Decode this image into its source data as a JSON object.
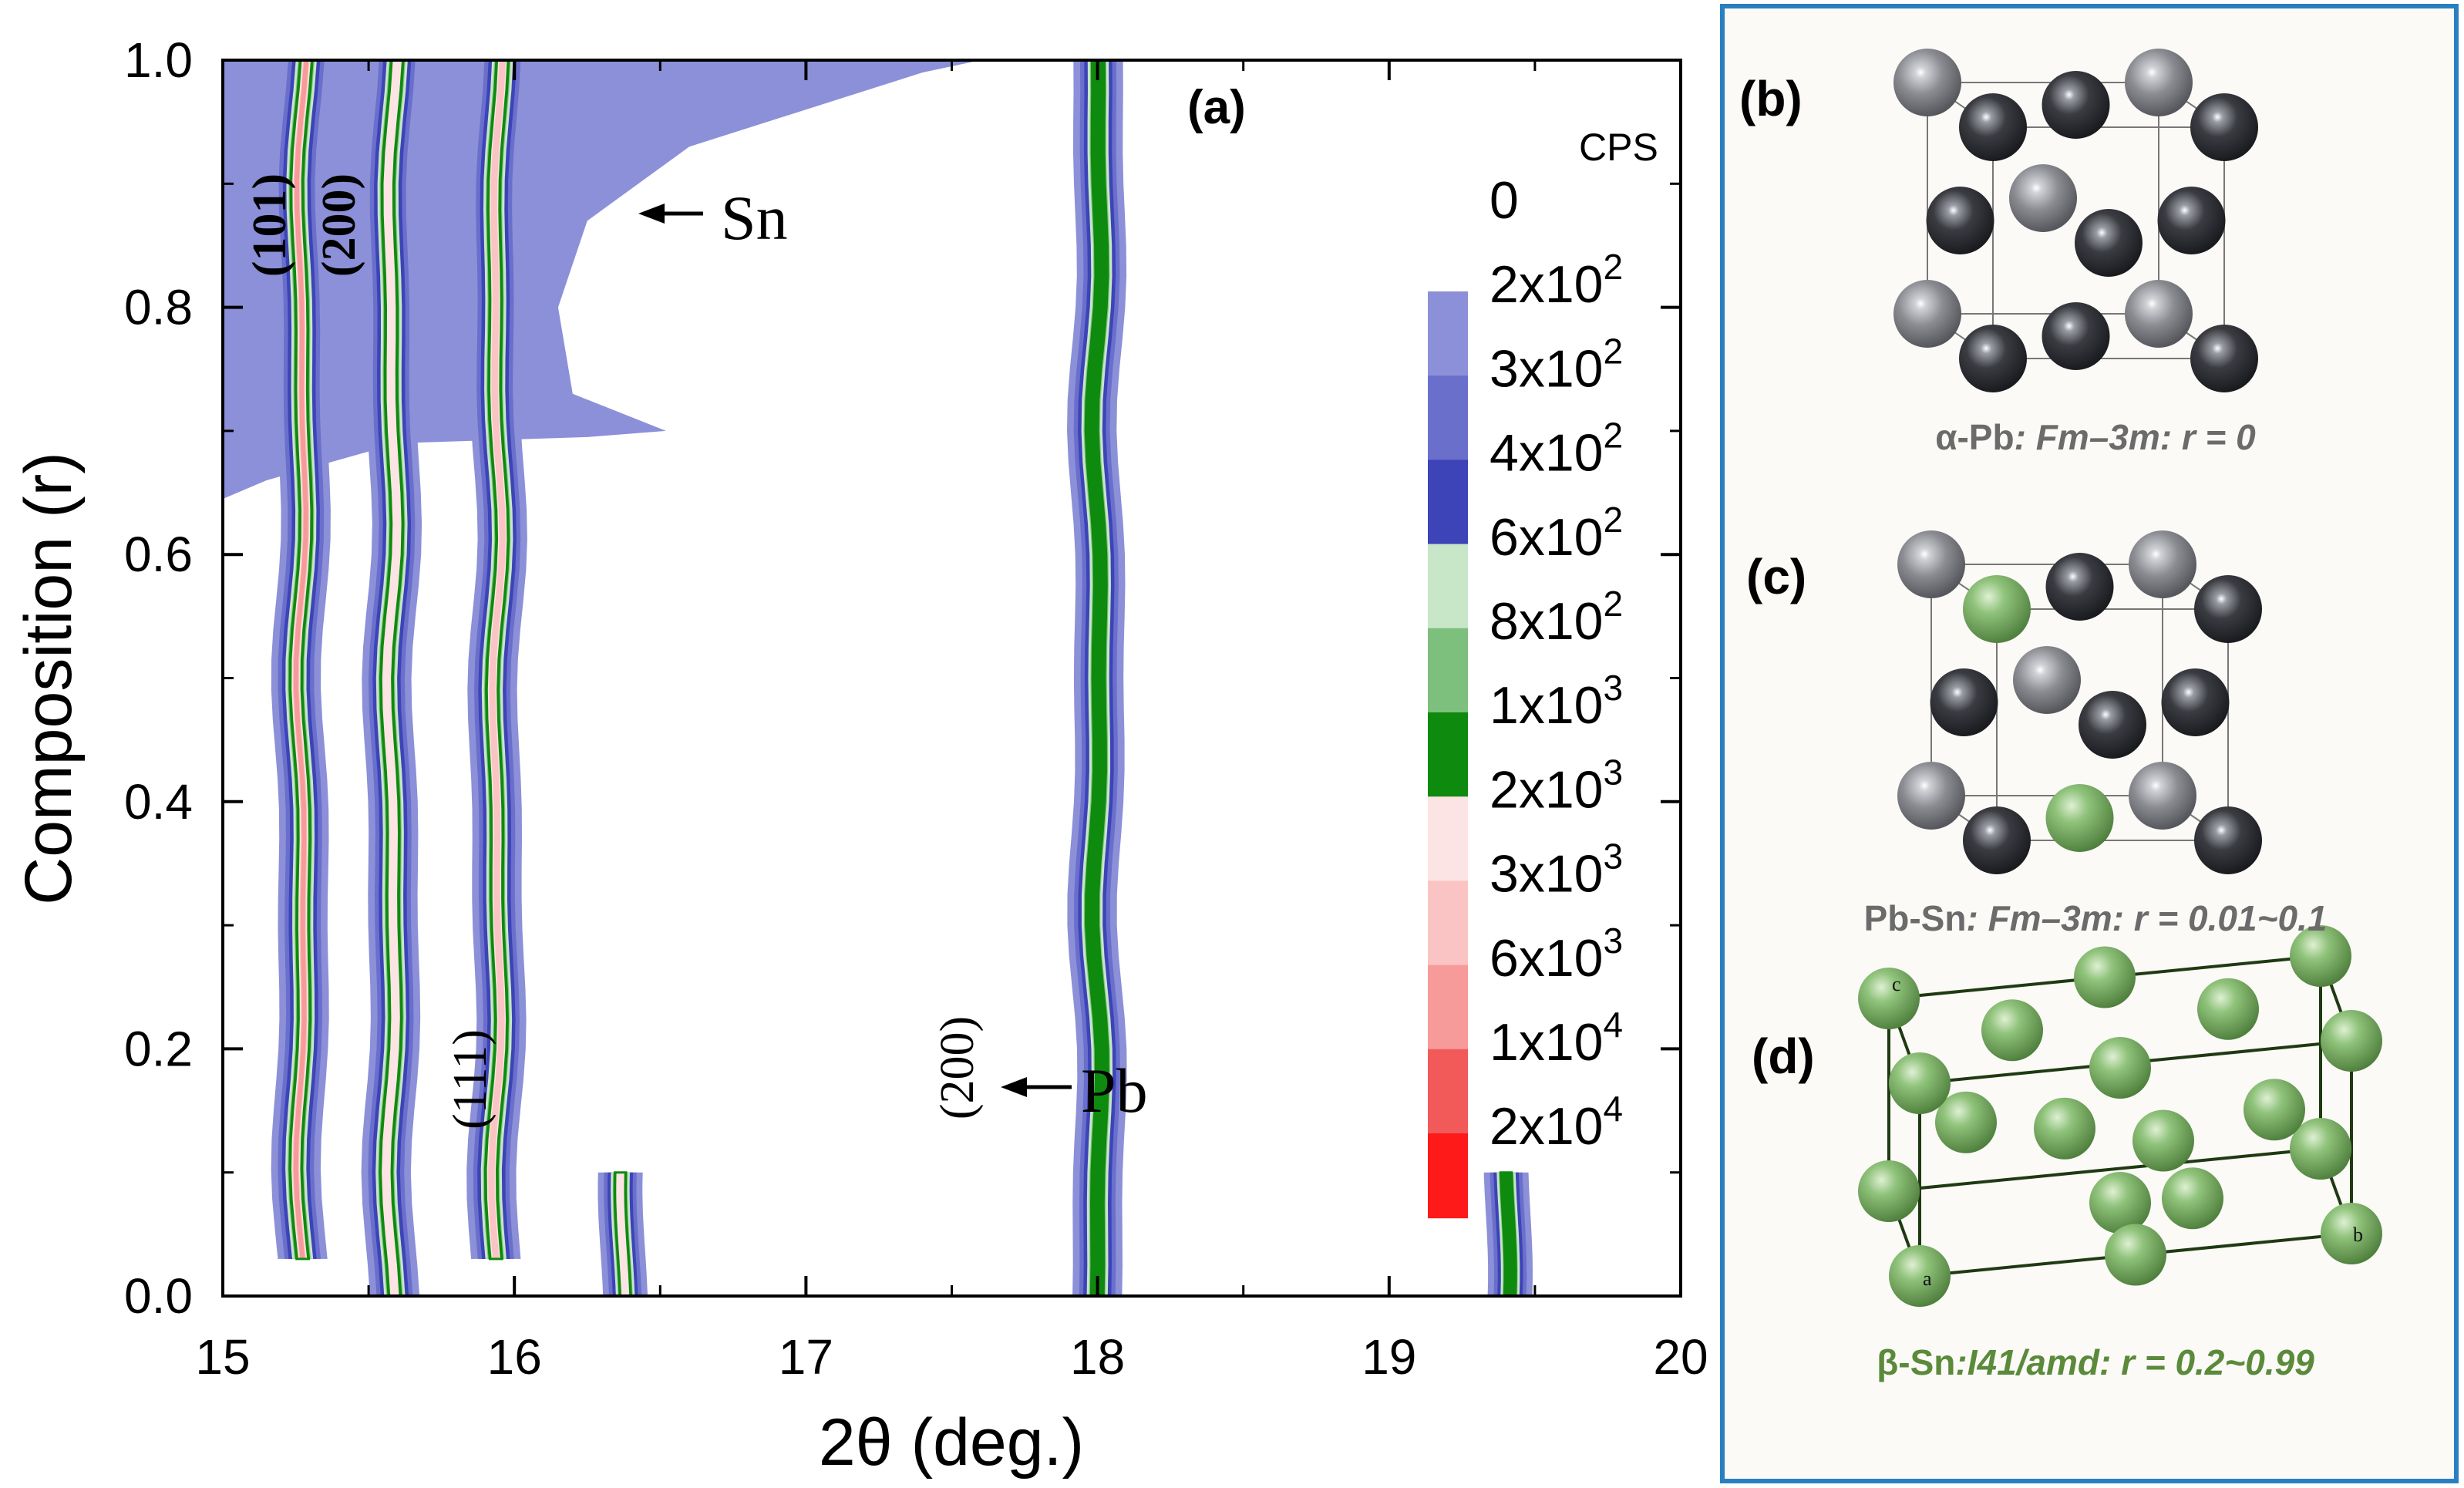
{
  "figure": {
    "panel_a_label": "(a)",
    "panel_b_label": "(b)",
    "panel_c_label": "(c)",
    "panel_d_label": "(d)"
  },
  "chart_data": {
    "type": "heatmap",
    "subtype": "filled-contour",
    "title": "",
    "xlabel": "2θ (deg.)",
    "ylabel": "Composition (r)",
    "xlim": [
      15,
      20
    ],
    "ylim": [
      0.0,
      1.0
    ],
    "xticks": [
      15,
      16,
      17,
      18,
      19,
      20
    ],
    "xtick_labels": [
      "15",
      "16",
      "17",
      "18",
      "19",
      "20"
    ],
    "yticks": [
      0.0,
      0.2,
      0.4,
      0.6,
      0.8,
      1.0
    ],
    "ytick_labels": [
      "0.0",
      "0.2",
      "0.4",
      "0.6",
      "0.8",
      "1.0"
    ],
    "colorbar": {
      "title": "CPS",
      "levels": [
        "0",
        "2x10^2",
        "3x10^2",
        "4x10^2",
        "6x10^2",
        "8x10^2",
        "1x10^3",
        "2x10^3",
        "3x10^3",
        "6x10^3",
        "1x10^4",
        "2x10^4"
      ],
      "level_mantissas": [
        "0",
        "2x10",
        "3x10",
        "4x10",
        "6x10",
        "8x10",
        "1x10",
        "2x10",
        "3x10",
        "6x10",
        "1x10",
        "2x10"
      ],
      "level_exponents": [
        "",
        "2",
        "2",
        "2",
        "2",
        "2",
        "3",
        "3",
        "3",
        "3",
        "4",
        "4"
      ],
      "colors": [
        "#8b90d8",
        "#6a6fcc",
        "#3d44b8",
        "#c8e6c8",
        "#7dbf7d",
        "#0e8a0e",
        "#fde4e4",
        "#fbc4c4",
        "#f79a9a",
        "#f25a5a",
        "#ff1a1a"
      ]
    },
    "peaks": [
      {
        "phase": "Sn",
        "hkl": "(101)",
        "two_theta": 15.27,
        "r_range": [
          0.03,
          1.0
        ],
        "max_level": "6x10^3"
      },
      {
        "phase": "Sn",
        "hkl": "(200)",
        "two_theta": 15.58,
        "r_range": [
          0.0,
          1.0
        ],
        "max_level": "2x10^3"
      },
      {
        "phase": "Pb",
        "hkl": "(111)",
        "two_theta": 15.94,
        "r_range": [
          0.03,
          1.0
        ],
        "max_level": "3x10^3"
      },
      {
        "phase": "",
        "hkl": "",
        "two_theta": 16.38,
        "r_range": [
          0.0,
          0.1
        ],
        "max_level": "2x10^3"
      },
      {
        "phase": "Pb",
        "hkl": "(200)",
        "two_theta": 18.0,
        "r_range": [
          0.0,
          1.0
        ],
        "max_level": "1x10^3"
      },
      {
        "phase": "",
        "hkl": "",
        "two_theta": 19.4,
        "r_range": [
          0.0,
          0.1
        ],
        "max_level": "1x10^3"
      }
    ],
    "annotations": [
      {
        "text": "Sn",
        "points_to": [
          16.35,
          0.86
        ]
      },
      {
        "text": "Pb",
        "points_to": [
          17.65,
          0.17
        ]
      },
      {
        "text": "(101)",
        "at": [
          15.22,
          0.89
        ]
      },
      {
        "text": "(200)",
        "at": [
          15.45,
          0.89
        ]
      },
      {
        "text": "(111)",
        "at": [
          15.85,
          0.2
        ]
      },
      {
        "text": "(200)",
        "at": [
          17.6,
          0.18
        ]
      }
    ]
  },
  "structures": [
    {
      "panel": "(b)",
      "caption_phase": "α-Pb",
      "caption_rest": ": Fm–3m: r = 0",
      "color": "#6b6b6b"
    },
    {
      "panel": "(c)",
      "caption_phase": "Pb-Sn",
      "caption_rest": ": Fm–3m: r = 0.01~0.1",
      "color": "#6b6b6b"
    },
    {
      "panel": "(d)",
      "caption_phase": "β-Sn",
      "caption_rest": ":I41/amd: r = 0.2~0.99",
      "color": "#5a8a3a",
      "axis_labels": [
        "a",
        "b",
        "c"
      ]
    }
  ],
  "colors": {
    "frame_border": "#2a7fc1",
    "atom_dark": "#2e3035",
    "atom_light": "#8a8c90",
    "atom_green": "#7fb56a"
  }
}
